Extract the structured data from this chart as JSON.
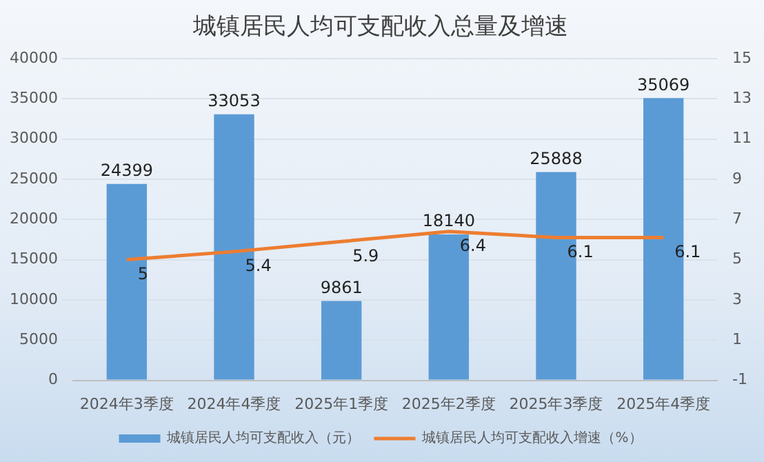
{
  "chart_data": {
    "type": "bar",
    "title": "城镇居民人均可支配收入总量及增速",
    "categories": [
      "2024年3季度",
      "2024年4季度",
      "2025年1季度",
      "2025年2季度",
      "2025年3季度",
      "2025年4季度"
    ],
    "series": [
      {
        "name": "城镇居民人均可支配收入（元）",
        "color": "#5b9bd5",
        "values": [
          24399,
          33053,
          9861,
          18140,
          25888,
          35069
        ]
      },
      {
        "name": "城镇居民人均可支配收入增速（%）",
        "type": "line",
        "axis": "y2",
        "color": "#ed7d31",
        "values": [
          5,
          5.4,
          5.9,
          6.4,
          6.1,
          6.1
        ]
      }
    ],
    "ylim": [
      0,
      40000
    ],
    "yticks": [
      0,
      5000,
      10000,
      15000,
      20000,
      25000,
      30000,
      35000,
      40000
    ],
    "y2lim": [
      -1,
      15
    ],
    "y2ticks": [
      -1,
      1,
      3,
      5,
      7,
      9,
      11,
      13,
      15
    ],
    "grid": "y",
    "legend": "bottom",
    "marker": "none",
    "line_style": "solid",
    "data_labels": true
  }
}
